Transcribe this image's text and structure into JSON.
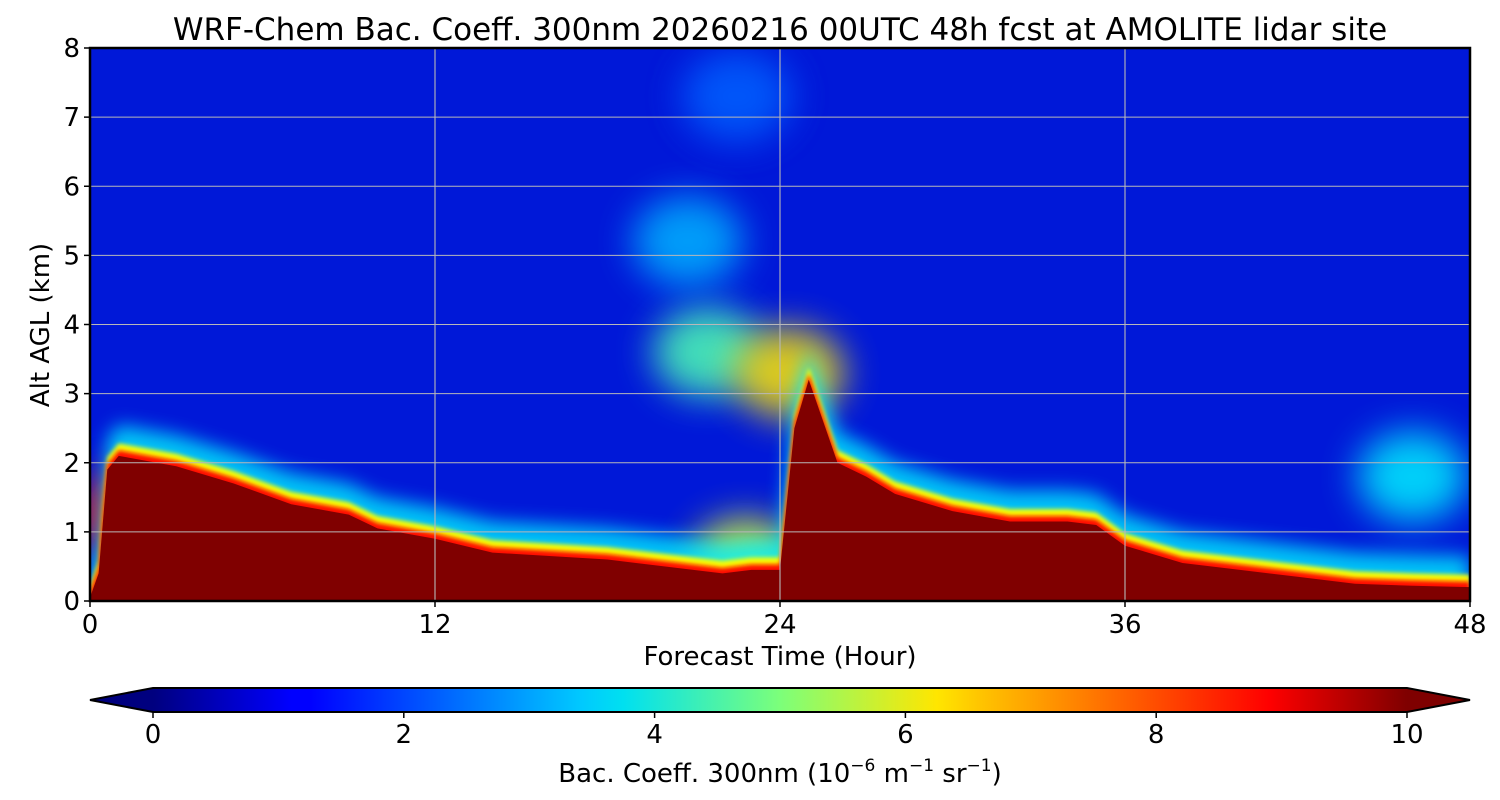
{
  "chart_data": {
    "type": "heatmap",
    "title": "WRF-Chem Bac. Coeff. 300nm  20260216 00UTC 48h fcst at AMOLITE lidar site",
    "xlabel": "Forecast Time (Hour)",
    "ylabel": "Alt AGL (km)",
    "xlim": [
      0,
      48
    ],
    "ylim": [
      0,
      8
    ],
    "x_ticks": [
      "0",
      "12",
      "24",
      "36",
      "48"
    ],
    "y_ticks": [
      "0",
      "1",
      "2",
      "3",
      "4",
      "5",
      "6",
      "7",
      "8"
    ],
    "grid": true,
    "colormap": "jet",
    "colorbar": {
      "label_main": "Bac. Coeff. 300nm  (10",
      "exp1": "−6",
      "unit1": " m",
      "exp2": "−1",
      "unit2": " sr",
      "exp3": "−1",
      "close": ")",
      "vmin": 0,
      "vmax": 10,
      "extend": "both",
      "ticks": [
        "0",
        "2",
        "4",
        "6",
        "8",
        "10"
      ]
    },
    "max_layer_top_km": {
      "x": [
        0,
        0.3,
        0.6,
        1,
        3,
        5,
        7,
        9,
        10,
        12,
        14,
        18,
        22,
        23,
        23.5,
        24,
        24.5,
        25,
        26,
        27,
        28,
        30,
        32,
        34,
        35,
        36,
        38,
        40,
        42,
        44,
        46,
        48
      ],
      "y": [
        0.05,
        0.4,
        1.9,
        2.1,
        1.95,
        1.7,
        1.4,
        1.25,
        1.05,
        0.9,
        0.7,
        0.6,
        0.4,
        0.45,
        0.45,
        0.45,
        2.5,
        3.2,
        2.0,
        1.8,
        1.55,
        1.3,
        1.15,
        1.15,
        1.1,
        0.8,
        0.55,
        0.45,
        0.35,
        0.25,
        0.22,
        0.2
      ]
    },
    "aerosol_plumes": [
      {
        "x": 1.5,
        "y": 1.25,
        "value": 8.5
      },
      {
        "x": 21.5,
        "y": 3.6,
        "value": 4.5
      },
      {
        "x": 24.3,
        "y": 3.3,
        "value": 6.5
      },
      {
        "x": 22.8,
        "y": 0.55,
        "value": 6.0
      },
      {
        "x": 46,
        "y": 1.8,
        "value": 3.6
      },
      {
        "x": 20.8,
        "y": 5.2,
        "value": 3.0
      },
      {
        "x": 22.5,
        "y": 7.3,
        "value": 2.2
      }
    ]
  }
}
